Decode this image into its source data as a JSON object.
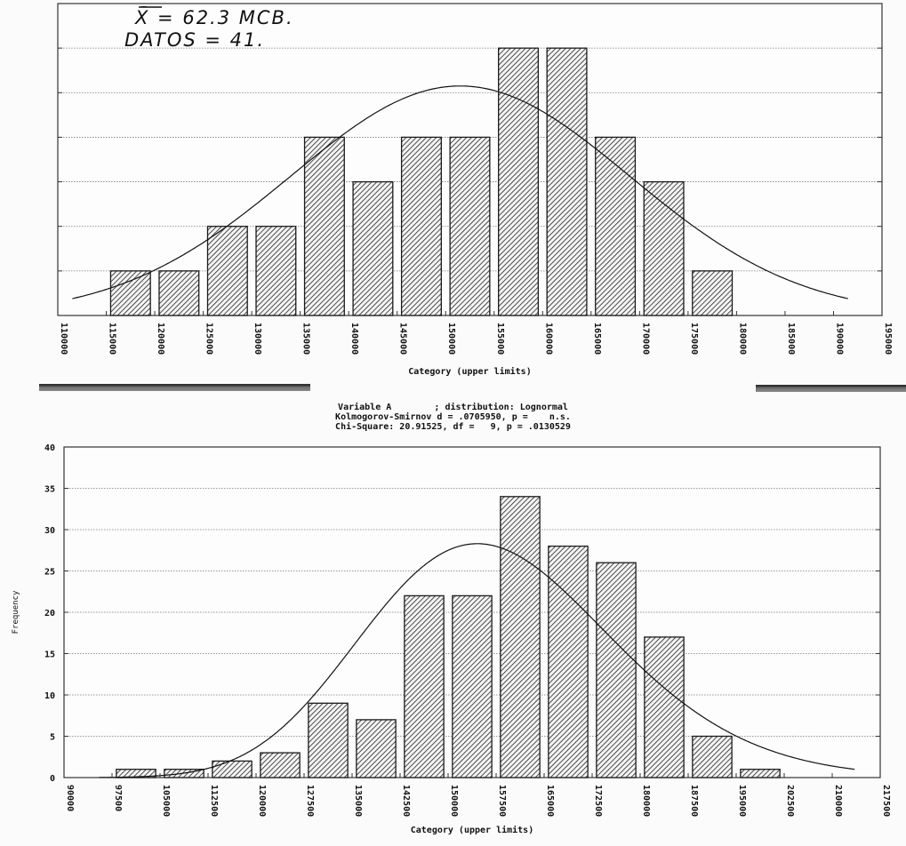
{
  "annotations": {
    "mean_label": "X̄ = 62.3 MCB.",
    "count_label": "DATOS = 41."
  },
  "stats_block": {
    "line1": "Variable A        ; distribution: Lognormal",
    "line2": "Kolmogorov-Smirnov d = .0705950, p =    n.s.",
    "line3": "Chi-Square: 20.91525, df =   9, p = .0130529"
  },
  "top_chart": {
    "xlabel": "Category (upper limits)"
  },
  "bottom_chart": {
    "xlabel": "Category (upper limits)",
    "ylabel": "Frequency"
  },
  "chart_data": [
    {
      "type": "bar",
      "title": "",
      "annotation": [
        "X̄ = 62.3 MCB.",
        "DATOS = 41."
      ],
      "xlabel": "Category (upper limits)",
      "ylabel": "",
      "x_ticks": [
        110000,
        115000,
        120000,
        125000,
        130000,
        135000,
        140000,
        145000,
        150000,
        155000,
        160000,
        165000,
        170000,
        175000,
        180000,
        185000,
        190000,
        195000
      ],
      "categories": [
        120000,
        125000,
        130000,
        135000,
        140000,
        145000,
        150000,
        155000,
        160000,
        165000,
        170000,
        175000,
        180000
      ],
      "values": [
        1,
        1,
        2,
        2,
        4,
        3,
        4,
        4,
        6,
        6,
        4,
        3,
        1
      ],
      "ylim": [
        0,
        7
      ],
      "grid": true,
      "overlay": "fitted normal curve",
      "bar_style": "diagonal hatch"
    },
    {
      "type": "bar",
      "title": "Variable A ; distribution: Lognormal",
      "subtitle": [
        "Kolmogorov-Smirnov d = .0705950, p = n.s.",
        "Chi-Square: 20.91525, df = 9, p = .0130529"
      ],
      "xlabel": "Category (upper limits)",
      "ylabel": "Frequency",
      "x_ticks": [
        90000,
        97500,
        105000,
        112500,
        120000,
        127500,
        135000,
        142500,
        150000,
        157500,
        165000,
        172500,
        180000,
        187500,
        195000,
        202500,
        210000,
        217500
      ],
      "y_ticks": [
        0,
        5,
        10,
        15,
        20,
        25,
        30,
        35,
        40
      ],
      "categories": [
        105000,
        112500,
        120000,
        127500,
        135000,
        142500,
        150000,
        157500,
        165000,
        172500,
        180000,
        187500,
        195000,
        202500
      ],
      "values": [
        1,
        1,
        2,
        3,
        9,
        7,
        22,
        22,
        34,
        28,
        26,
        17,
        5,
        1
      ],
      "ylim": [
        0,
        40
      ],
      "grid": true,
      "overlay": "fitted lognormal curve",
      "bar_style": "diagonal hatch"
    }
  ]
}
